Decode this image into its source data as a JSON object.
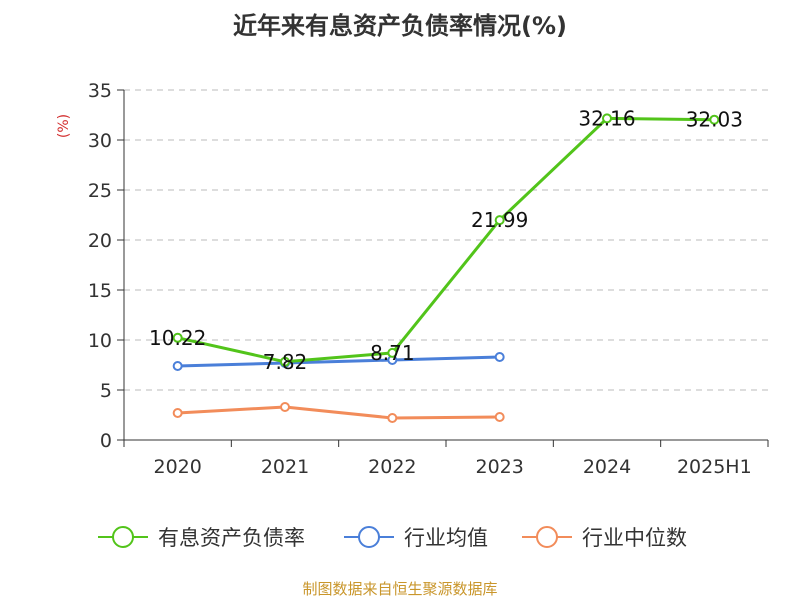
{
  "chart_data": {
    "type": "line",
    "title": "近年来有息资产负债率情况(%)",
    "ylabel": "(%)",
    "xlabel": "",
    "categories": [
      "2020",
      "2021",
      "2022",
      "2023",
      "2024",
      "2025H1"
    ],
    "ylim": [
      0,
      35
    ],
    "yticks": [
      0,
      5,
      10,
      15,
      20,
      25,
      30,
      35
    ],
    "grid": true,
    "legend_position": "bottom",
    "series": [
      {
        "name": "有息资产负债率",
        "color": "#52c41a",
        "values": [
          10.22,
          7.82,
          8.71,
          21.99,
          32.16,
          32.03
        ],
        "data_labels": [
          "10.22",
          "7.82",
          "8.71",
          "21.99",
          "32.16",
          "32.03"
        ]
      },
      {
        "name": "行业均值",
        "color": "#4a7fd9",
        "values": [
          7.4,
          7.7,
          8.0,
          8.3,
          null,
          null
        ]
      },
      {
        "name": "行业中位数",
        "color": "#f28c5a",
        "values": [
          2.7,
          3.3,
          2.2,
          2.3,
          null,
          null
        ]
      }
    ],
    "source": "制图数据来自恒生聚源数据库"
  }
}
